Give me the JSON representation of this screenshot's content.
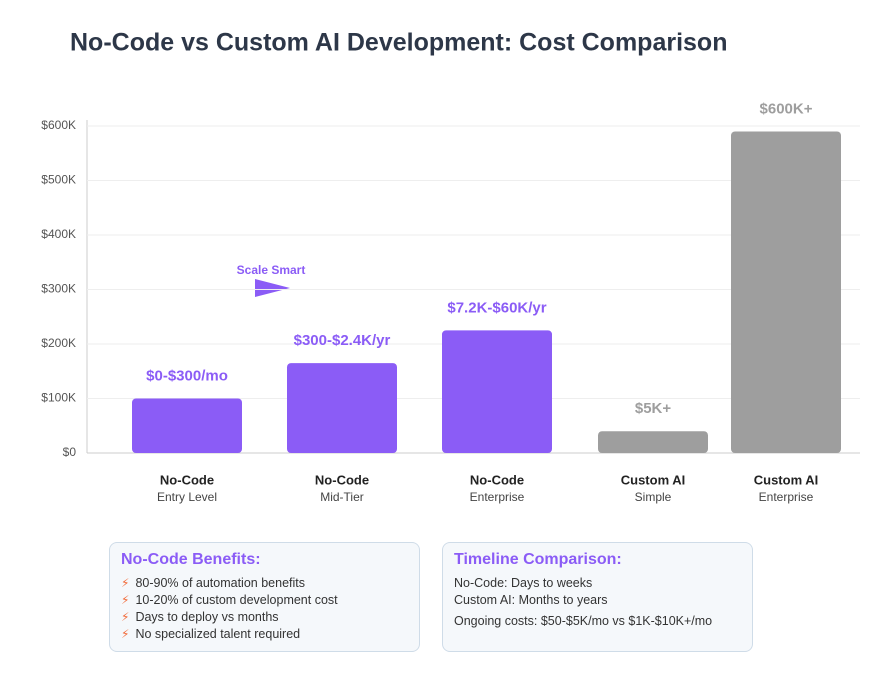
{
  "chart_data": {
    "type": "bar",
    "title": "No-Code vs Custom AI Development: Cost Comparison",
    "categories": [
      "No-Code",
      "No-Code",
      "No-Code",
      "Custom AI",
      "Custom AI"
    ],
    "subcategories": [
      "Entry Level",
      "Mid-Tier",
      "Enterprise",
      "Simple",
      "Enterprise"
    ],
    "values": [
      100000,
      165000,
      225000,
      40000,
      590000
    ],
    "value_labels": [
      "$0-$300/mo",
      "$300-$2.4K/yr",
      "$7.2K-$60K/yr",
      "$5K+",
      "$600K+"
    ],
    "colors": [
      "#8b5cf6",
      "#8b5cf6",
      "#8b5cf6",
      "#9e9e9e",
      "#9e9e9e"
    ],
    "ylim": [
      0,
      600000
    ],
    "yticks": [
      0,
      {
        "value": 100000,
        "label": "$100K"
      },
      {
        "value": 200000,
        "label": "$200K"
      },
      {
        "value": 300000,
        "label": "$300K"
      },
      {
        "value": 400000,
        "label": "$400K"
      },
      {
        "value": 500000,
        "label": "$500K"
      },
      {
        "value": 600000,
        "label": "$600K"
      }
    ],
    "ytick_zero_label": "$0",
    "grid": true,
    "annotation": "Scale Smart"
  },
  "benefits": {
    "title": "No-Code Benefits:",
    "items": [
      "80-90% of automation benefits",
      "10-20% of custom development cost",
      "Days to deploy vs months",
      "No specialized talent required"
    ]
  },
  "timeline": {
    "title": "Timeline Comparison:",
    "lines": [
      "No-Code: Days to weeks",
      "Custom AI: Months to years",
      "Ongoing costs: $50-$5K/mo vs $1K-$10K+/mo"
    ]
  }
}
